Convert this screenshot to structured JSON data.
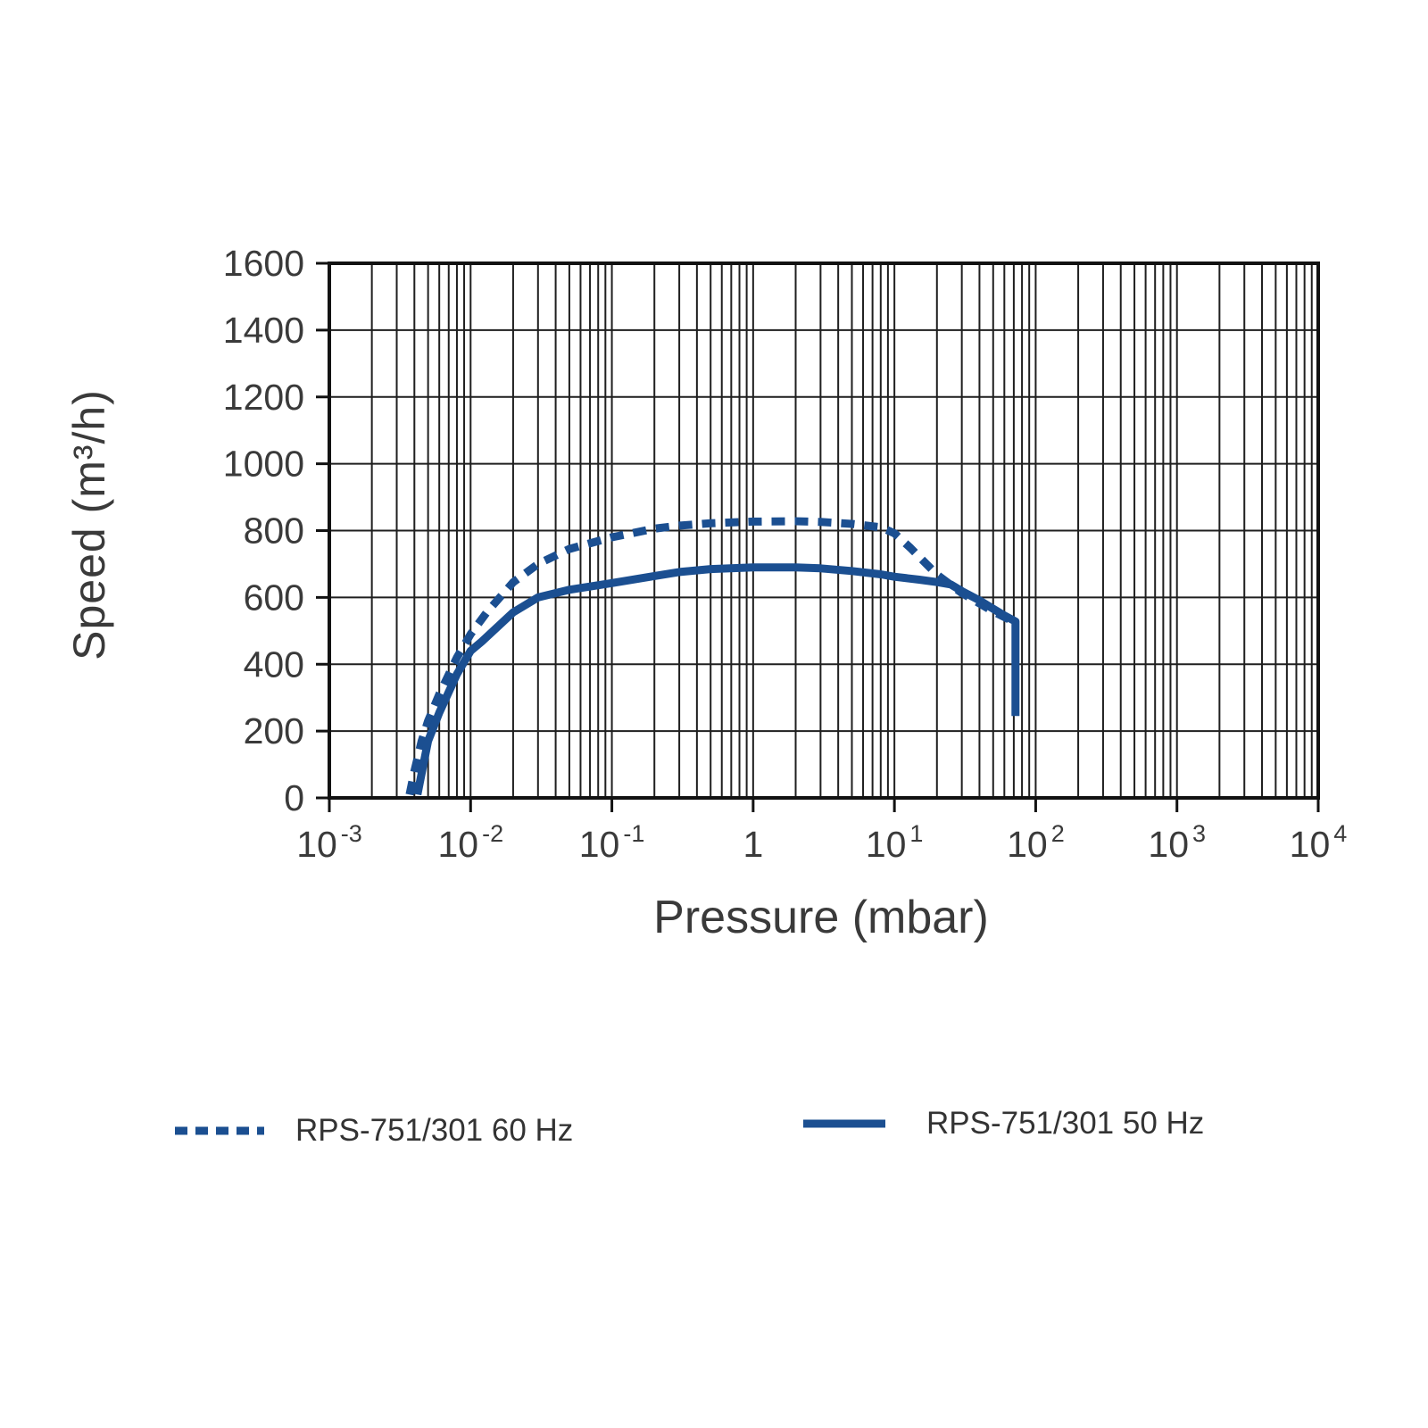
{
  "chart_data": {
    "type": "line",
    "title": "",
    "xlabel": "Pressure (mbar)",
    "ylabel": "Speed (m³/h)",
    "xscale": "log",
    "xlim": [
      0.001,
      10000
    ],
    "ylim": [
      0,
      1600
    ],
    "grid": true,
    "legend_position": "bottom",
    "style": {
      "line_color": "#1b4f91",
      "grid_color": "#1f1f1f",
      "frame_color": "#121212",
      "text_color": "#3a3a3a"
    },
    "y_ticks": [
      0,
      200,
      400,
      600,
      800,
      1000,
      1200,
      1400,
      1600
    ],
    "x_ticks": [
      {
        "base": "10",
        "exp": "-3",
        "value": 0.001
      },
      {
        "base": "10",
        "exp": "-2",
        "value": 0.01
      },
      {
        "base": "10",
        "exp": "-1",
        "value": 0.1
      },
      {
        "base": "1",
        "exp": "",
        "value": 1
      },
      {
        "base": "10",
        "exp": "1",
        "value": 10
      },
      {
        "base": "10",
        "exp": "2",
        "value": 100
      },
      {
        "base": "10",
        "exp": "3",
        "value": 1000
      },
      {
        "base": "10",
        "exp": "4",
        "value": 10000
      }
    ],
    "series": [
      {
        "name": "RPS-751/301 60 Hz",
        "style": "dashed",
        "color": "#1b4f91",
        "points": [
          [
            0.0037,
            10
          ],
          [
            0.004,
            80
          ],
          [
            0.0045,
            170
          ],
          [
            0.005,
            230
          ],
          [
            0.006,
            310
          ],
          [
            0.008,
            420
          ],
          [
            0.01,
            490
          ],
          [
            0.013,
            555
          ],
          [
            0.02,
            645
          ],
          [
            0.03,
            700
          ],
          [
            0.05,
            745
          ],
          [
            0.1,
            780
          ],
          [
            0.2,
            806
          ],
          [
            0.3,
            815
          ],
          [
            0.5,
            822
          ],
          [
            1,
            827
          ],
          [
            2,
            828
          ],
          [
            3,
            826
          ],
          [
            5,
            820
          ],
          [
            8,
            810
          ],
          [
            10,
            792
          ],
          [
            13,
            748
          ],
          [
            20,
            668
          ],
          [
            30,
            613
          ],
          [
            50,
            558
          ],
          [
            70,
            527
          ]
        ]
      },
      {
        "name": "RPS-751/301 50 Hz",
        "style": "solid",
        "color": "#1b4f91",
        "points": [
          [
            0.0042,
            10
          ],
          [
            0.005,
            170
          ],
          [
            0.006,
            255
          ],
          [
            0.008,
            370
          ],
          [
            0.01,
            440
          ],
          [
            0.012,
            468
          ],
          [
            0.02,
            555
          ],
          [
            0.03,
            600
          ],
          [
            0.05,
            623
          ],
          [
            0.1,
            643
          ],
          [
            0.2,
            664
          ],
          [
            0.3,
            676
          ],
          [
            0.5,
            685
          ],
          [
            1,
            690
          ],
          [
            2,
            690
          ],
          [
            3,
            687
          ],
          [
            5,
            679
          ],
          [
            8,
            669
          ],
          [
            10,
            662
          ],
          [
            15,
            653
          ],
          [
            20,
            646
          ],
          [
            25,
            639
          ],
          [
            30,
            619
          ],
          [
            40,
            591
          ],
          [
            50,
            566
          ],
          [
            60,
            546
          ],
          [
            72,
            528
          ],
          [
            72,
            245
          ]
        ]
      }
    ]
  }
}
